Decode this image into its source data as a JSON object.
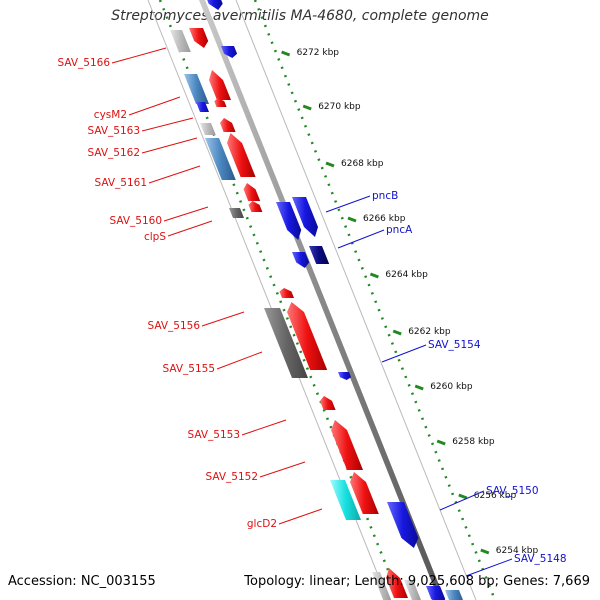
{
  "title": "Streptomyces avermitilis MA-4680, complete genome",
  "footer": {
    "accession": "Accession: NC_003155",
    "summary": "Topology: linear; Length: 9,025,608 bp; Genes: 7,669"
  },
  "ticks": [
    "6272 kbp",
    "6270 kbp",
    "6268 kbp",
    "6266 kbp",
    "6264 kbp",
    "6262 kbp",
    "6260 kbp",
    "6258 kbp",
    "6256 kbp",
    "6254 kbp"
  ],
  "genes_left": [
    "SAV_5166",
    "cysM2",
    "SAV_5163",
    "SAV_5162",
    "SAV_5161",
    "SAV_5160",
    "clpS",
    "SAV_5156",
    "SAV_5155",
    "SAV_5153",
    "SAV_5152",
    "glcD2"
  ],
  "genes_right": [
    "pncB",
    "pncA",
    "SAV_5154",
    "SAV_5150",
    "SAV_5148"
  ],
  "colors": {
    "left_label": "#dd1111",
    "right_label": "#1111cc",
    "red_gene": "#ee1111",
    "blue_gene": "#1818e0",
    "steelblue_gene": "#4a86c0",
    "gray_gene": "#666666",
    "lightgray_gene": "#bbbbbb",
    "cyan_gene": "#18e0e0",
    "navy_gene": "#0a0a80",
    "backbone": "#888888",
    "tick_dots": "#228822"
  }
}
